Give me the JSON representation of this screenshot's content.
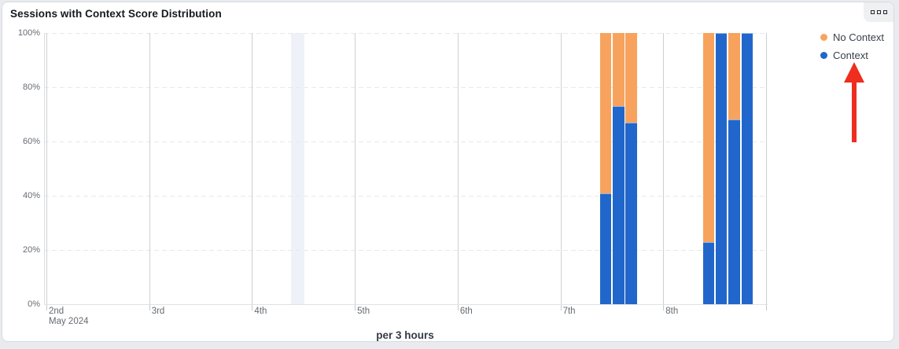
{
  "card": {
    "title": "Sessions with Context Score Distribution",
    "menu_icon": "grip-squares-icon"
  },
  "legend": [
    {
      "label": "No Context",
      "color": "#f7a35e"
    },
    {
      "label": "Context",
      "color": "#2166cb"
    }
  ],
  "annotation": {
    "shape": "arrow-up",
    "color": "#ee2e1e",
    "points_to": "Context"
  },
  "chart_data": {
    "type": "bar",
    "stacking": "percent",
    "title": "Sessions with Context Score Distribution",
    "xlabel": "per 3 hours",
    "ylabel": "",
    "ylim": [
      0,
      100
    ],
    "grid": "on",
    "legend_position": "top-right",
    "y_ticks": [
      {
        "label": "100%",
        "value": 100
      },
      {
        "label": "80%",
        "value": 80
      },
      {
        "label": "60%",
        "value": 60
      },
      {
        "label": "40%",
        "value": 40
      },
      {
        "label": "20%",
        "value": 20
      },
      {
        "label": "0%",
        "value": 0
      }
    ],
    "x_days": [
      {
        "label": "2nd",
        "sublabel": "May 2024"
      },
      {
        "label": "3rd"
      },
      {
        "label": "4th"
      },
      {
        "label": "5th"
      },
      {
        "label": "6th"
      },
      {
        "label": "7th"
      },
      {
        "label": "8th"
      }
    ],
    "slots_per_day": 8,
    "series": [
      {
        "name": "Context",
        "color": "#2166cb"
      },
      {
        "name": "No Context",
        "color": "#f7a35e"
      }
    ],
    "bars": [
      {
        "day": "7th",
        "day_index": 5,
        "slot": 3,
        "context_pct": 41,
        "no_context_pct": 59
      },
      {
        "day": "7th",
        "day_index": 5,
        "slot": 4,
        "context_pct": 73,
        "no_context_pct": 27
      },
      {
        "day": "7th",
        "day_index": 5,
        "slot": 5,
        "context_pct": 67,
        "no_context_pct": 33
      },
      {
        "day": "8th",
        "day_index": 6,
        "slot": 3,
        "context_pct": 23,
        "no_context_pct": 77
      },
      {
        "day": "8th",
        "day_index": 6,
        "slot": 4,
        "context_pct": 100,
        "no_context_pct": 0
      },
      {
        "day": "8th",
        "day_index": 6,
        "slot": 5,
        "context_pct": 68,
        "no_context_pct": 32
      },
      {
        "day": "8th",
        "day_index": 6,
        "slot": 6,
        "context_pct": 100,
        "no_context_pct": 0
      }
    ],
    "highlight_band": {
      "day": "4th",
      "day_index": 2,
      "slot": 3
    }
  }
}
